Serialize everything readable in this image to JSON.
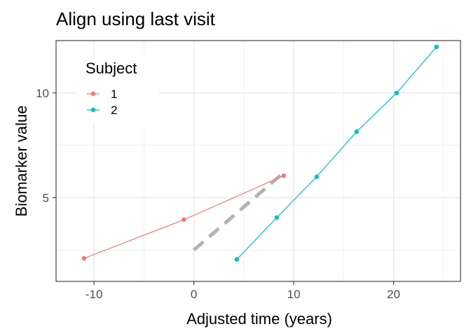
{
  "chart_data": {
    "type": "line",
    "title": "Align using last visit",
    "xlabel": "Adjusted time (years)",
    "ylabel": "Biomarker value",
    "xlim": [
      -13.8,
      26.7
    ],
    "ylim": [
      1.0,
      12.5
    ],
    "xticks": [
      -10,
      0,
      10,
      20
    ],
    "xtick_labels": [
      "-10",
      "0",
      "10",
      "20"
    ],
    "yticks": [
      5,
      10
    ],
    "ytick_labels": [
      "5",
      "10"
    ],
    "x_minor_grid": [
      -5,
      5,
      15,
      25
    ],
    "y_minor_grid": [
      2.5,
      7.5,
      12.5
    ],
    "grid": true,
    "legend": {
      "title": "Subject",
      "position": "top-left"
    },
    "series": [
      {
        "name": "1",
        "color": "#F8766D",
        "x": [
          -11.0,
          -1.0,
          9.0
        ],
        "y": [
          2.1,
          3.95,
          6.05
        ]
      },
      {
        "name": "2",
        "color": "#00BFC4",
        "x": [
          4.3,
          8.3,
          12.3,
          16.3,
          20.3,
          24.3
        ],
        "y": [
          2.05,
          4.05,
          6.0,
          8.15,
          10.0,
          12.2
        ]
      }
    ],
    "reference_line": {
      "style": "dashed",
      "color": "#b3b3b3",
      "x": [
        0,
        9
      ],
      "y": [
        2.5,
        6.2
      ]
    }
  }
}
